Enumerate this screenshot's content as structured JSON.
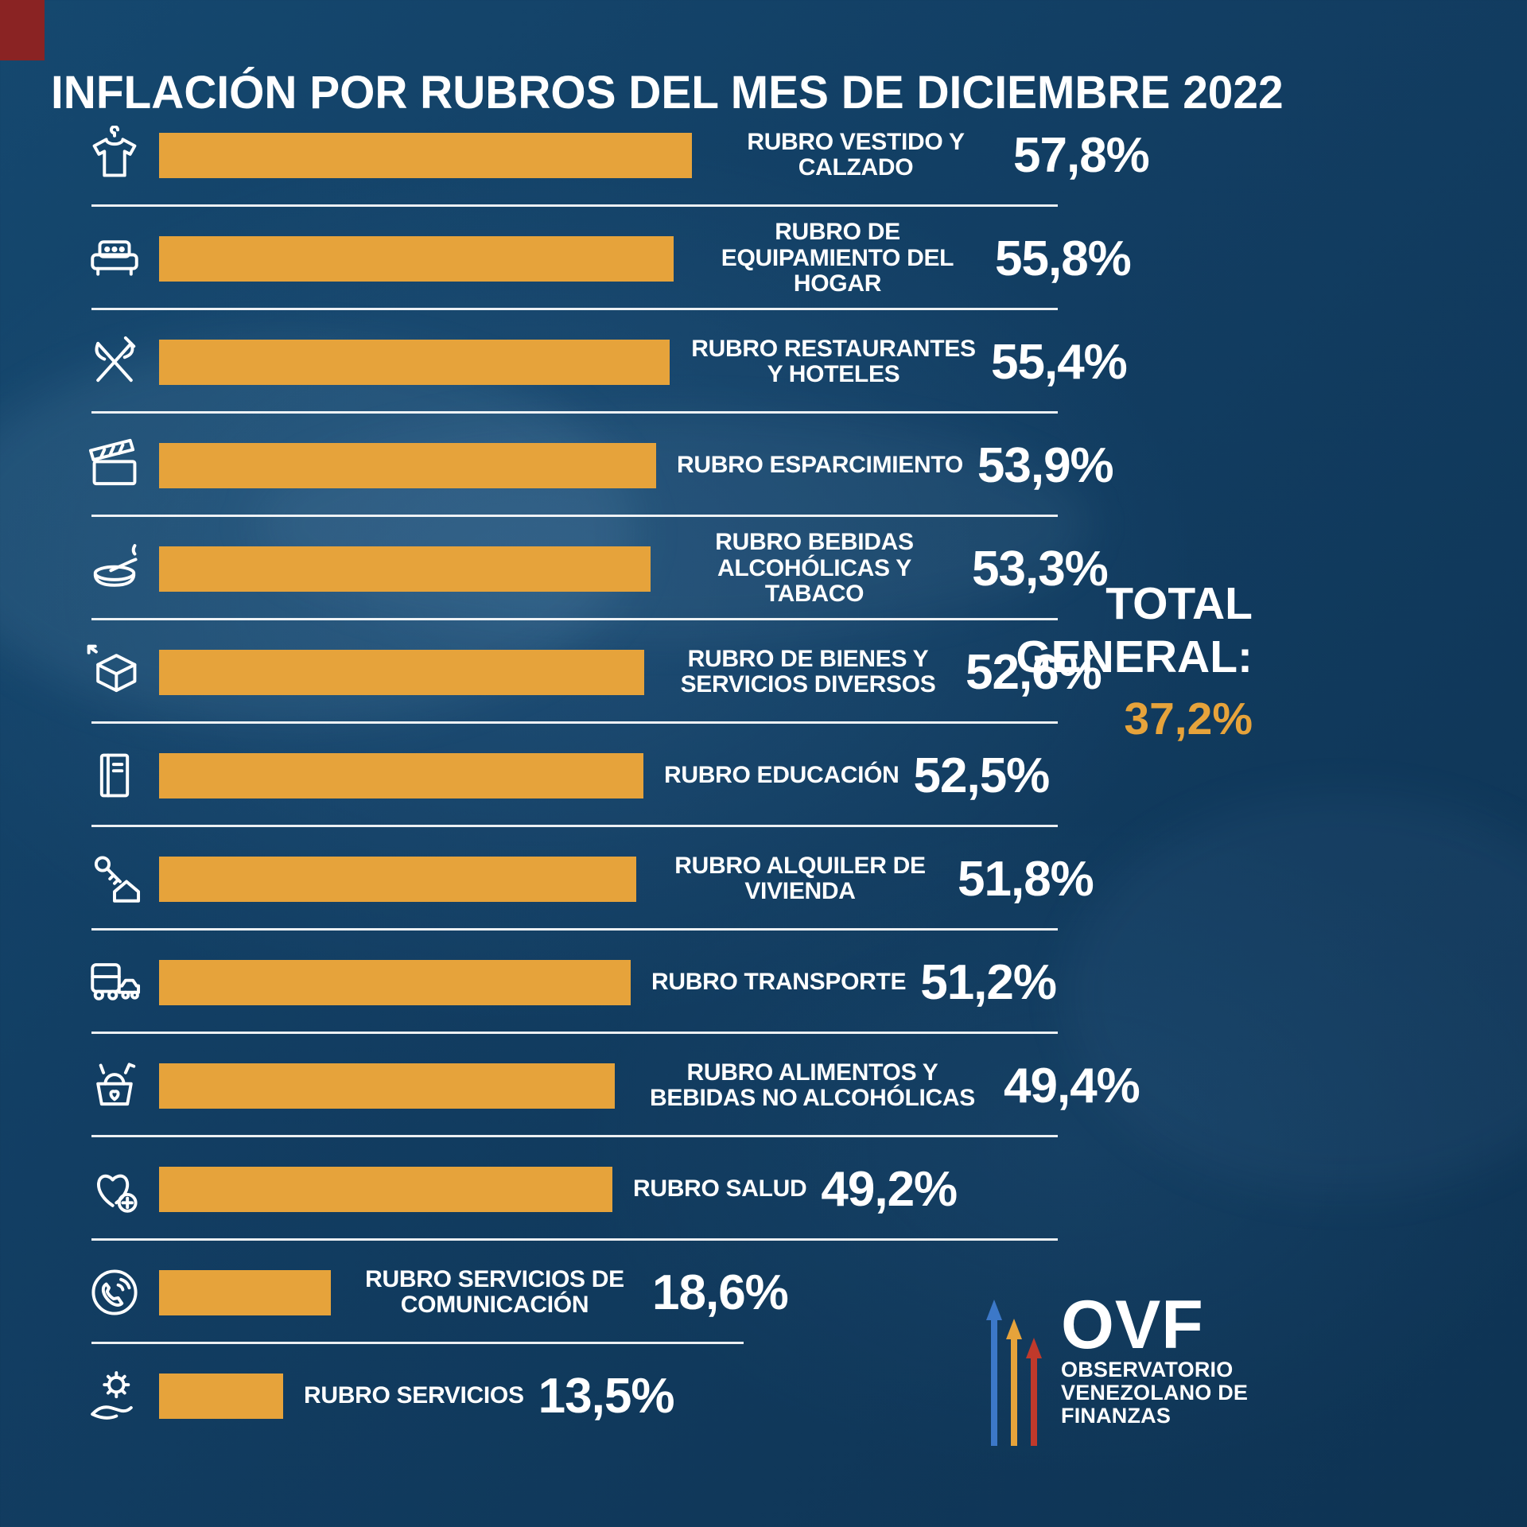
{
  "title": "INFLACIÓN POR RUBROS DEL MES DE DICIEMBRE 2022",
  "colors": {
    "background": "#123e63",
    "bar": "#e6a33b",
    "accent": "#e6a33b",
    "text": "#ffffff"
  },
  "chart_data": {
    "type": "bar",
    "orientation": "horizontal",
    "title": "INFLACIÓN POR RUBROS DEL MES DE DICIEMBRE 2022",
    "unit": "%",
    "xlim": [
      0,
      60
    ],
    "categories": [
      "RUBRO VESTIDO Y CALZADO",
      "RUBRO DE EQUIPAMIENTO DEL HOGAR",
      "RUBRO RESTAURANTES Y HOTELES",
      "RUBRO ESPARCIMIENTO",
      "RUBRO BEBIDAS ALCOHÓLICAS Y TABACO",
      "RUBRO DE BIENES Y SERVICIOS DIVERSOS",
      "RUBRO EDUCACIÓN",
      "RUBRO ALQUILER DE VIVIENDA",
      "RUBRO TRANSPORTE",
      "RUBRO ALIMENTOS Y BEBIDAS NO ALCOHÓLICAS",
      "RUBRO SALUD",
      "RUBRO SERVICIOS DE COMUNICACIÓN",
      "RUBRO SERVICIOS"
    ],
    "values": [
      57.8,
      55.8,
      55.4,
      53.9,
      53.3,
      52.6,
      52.5,
      51.8,
      51.2,
      49.4,
      49.2,
      18.6,
      13.5
    ],
    "value_labels": [
      "57,8%",
      "55,8%",
      "55,4%",
      "53,9%",
      "53,3%",
      "52,6%",
      "52,5%",
      "51,8%",
      "51,2%",
      "49,4%",
      "49,2%",
      "18,6%",
      "13,5%"
    ],
    "icons": [
      "tshirt-icon",
      "sofa-icon",
      "restaurant-icon",
      "clapperboard-icon",
      "ashtray-icon",
      "package-icon",
      "book-icon",
      "house-key-icon",
      "transport-icon",
      "grocery-basket-icon",
      "health-heart-icon",
      "phone-icon",
      "gear-hand-icon"
    ],
    "total_general": 37.2
  },
  "total": {
    "line1": "TOTAL",
    "line2": "GENERAL:",
    "value": "37,2%"
  },
  "logo": {
    "acronym": "OVF",
    "line1": "OBSERVATORIO",
    "line2": "VENEZOLANO DE",
    "line3": "FINANZAS"
  }
}
